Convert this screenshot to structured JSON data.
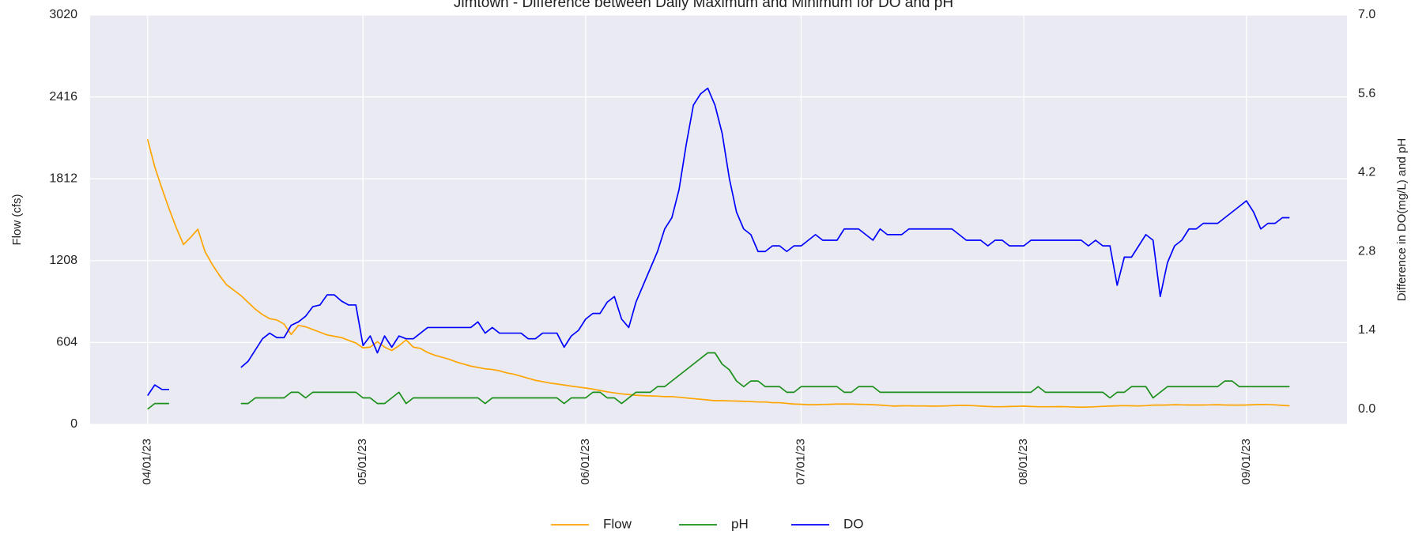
{
  "chart_data": {
    "type": "line",
    "title": "Jimtown - Difference between Daily Maximum and Minimum for DO and pH",
    "ylabel": "Flow (cfs)",
    "y2label": "Difference in DO(mg/L) and pH",
    "x": [
      "04/01/23",
      "04/02/23",
      "04/03/23",
      "04/04/23",
      "04/05/23",
      "04/06/23",
      "04/07/23",
      "04/08/23",
      "04/09/23",
      "04/10/23",
      "04/11/23",
      "04/12/23",
      "04/13/23",
      "04/14/23",
      "04/15/23",
      "04/16/23",
      "04/17/23",
      "04/18/23",
      "04/19/23",
      "04/20/23",
      "04/21/23",
      "04/22/23",
      "04/23/23",
      "04/24/23",
      "04/25/23",
      "04/26/23",
      "04/27/23",
      "04/28/23",
      "04/29/23",
      "04/30/23",
      "05/01/23",
      "05/02/23",
      "05/03/23",
      "05/04/23",
      "05/05/23",
      "05/06/23",
      "05/07/23",
      "05/08/23",
      "05/09/23",
      "05/10/23",
      "05/11/23",
      "05/12/23",
      "05/13/23",
      "05/14/23",
      "05/15/23",
      "05/16/23",
      "05/17/23",
      "05/18/23",
      "05/19/23",
      "05/20/23",
      "05/21/23",
      "05/22/23",
      "05/23/23",
      "05/24/23",
      "05/25/23",
      "05/26/23",
      "05/27/23",
      "05/28/23",
      "05/29/23",
      "05/30/23",
      "05/31/23",
      "06/01/23",
      "06/02/23",
      "06/03/23",
      "06/04/23",
      "06/05/23",
      "06/06/23",
      "06/07/23",
      "06/08/23",
      "06/09/23",
      "06/10/23",
      "06/11/23",
      "06/12/23",
      "06/13/23",
      "06/14/23",
      "06/15/23",
      "06/16/23",
      "06/17/23",
      "06/18/23",
      "06/19/23",
      "06/20/23",
      "06/21/23",
      "06/22/23",
      "06/23/23",
      "06/24/23",
      "06/25/23",
      "06/26/23",
      "06/27/23",
      "06/28/23",
      "06/29/23",
      "06/30/23",
      "07/01/23",
      "07/02/23",
      "07/03/23",
      "07/04/23",
      "07/05/23",
      "07/06/23",
      "07/07/23",
      "07/08/23",
      "07/09/23",
      "07/10/23",
      "07/11/23",
      "07/12/23",
      "07/13/23",
      "07/14/23",
      "07/15/23",
      "07/16/23",
      "07/17/23",
      "07/18/23",
      "07/19/23",
      "07/20/23",
      "07/21/23",
      "07/22/23",
      "07/23/23",
      "07/24/23",
      "07/25/23",
      "07/26/23",
      "07/27/23",
      "07/28/23",
      "07/29/23",
      "07/30/23",
      "07/31/23",
      "08/01/23",
      "08/02/23",
      "08/03/23",
      "08/04/23",
      "08/05/23",
      "08/06/23",
      "08/07/23",
      "08/08/23",
      "08/09/23",
      "08/10/23",
      "08/11/23",
      "08/12/23",
      "08/13/23",
      "08/14/23",
      "08/15/23",
      "08/16/23",
      "08/17/23",
      "08/18/23",
      "08/19/23",
      "08/20/23",
      "08/21/23",
      "08/22/23",
      "08/23/23",
      "08/24/23",
      "08/25/23",
      "08/26/23",
      "08/27/23",
      "08/28/23",
      "08/29/23",
      "08/30/23",
      "08/31/23",
      "09/01/23",
      "09/02/23",
      "09/03/23",
      "09/04/23",
      "09/05/23",
      "09/06/23",
      "09/07/23"
    ],
    "series": [
      {
        "name": "Flow",
        "color": "#ffa500",
        "axis": "y",
        "values": [
          2103,
          1900,
          1740,
          1590,
          1450,
          1327,
          1380,
          1440,
          1274,
          1180,
          1100,
          1030,
          990,
          950,
          900,
          850,
          810,
          780,
          770,
          740,
          663,
          730,
          720,
          700,
          680,
          660,
          650,
          640,
          620,
          600,
          564,
          570,
          610,
          570,
          545,
          580,
          623,
          570,
          560,
          530,
          510,
          495,
          480,
          460,
          445,
          430,
          420,
          410,
          405,
          395,
          380,
          370,
          355,
          340,
          325,
          315,
          305,
          298,
          290,
          282,
          275,
          268,
          260,
          250,
          240,
          232,
          225,
          220,
          215,
          212,
          210,
          208,
          205,
          205,
          200,
          195,
          190,
          185,
          180,
          175,
          175,
          173,
          172,
          170,
          168,
          165,
          165,
          160,
          160,
          155,
          150,
          148,
          145,
          145,
          147,
          148,
          150,
          150,
          150,
          148,
          147,
          145,
          142,
          138,
          135,
          137,
          137,
          136,
          136,
          135,
          135,
          136,
          138,
          140,
          140,
          138,
          135,
          132,
          130,
          130,
          132,
          133,
          135,
          132,
          130,
          130,
          130,
          131,
          130,
          128,
          127,
          128,
          130,
          133,
          135,
          137,
          138,
          137,
          136,
          138,
          142,
          142,
          143,
          145,
          144,
          143,
          143,
          143,
          144,
          145,
          143,
          142,
          142,
          143,
          145,
          147,
          146,
          144,
          140,
          137
        ]
      },
      {
        "name": "pH",
        "color": "#1a8f1a",
        "axis": "y2",
        "values": [
          0.0,
          0.1,
          0.1,
          0.1,
          null,
          null,
          null,
          null,
          null,
          null,
          null,
          null,
          null,
          0.1,
          0.1,
          0.2,
          0.2,
          0.2,
          0.2,
          0.2,
          0.3,
          0.3,
          0.2,
          0.3,
          0.3,
          0.3,
          0.3,
          0.3,
          0.3,
          0.3,
          0.2,
          0.2,
          0.1,
          0.1,
          0.2,
          0.3,
          0.1,
          0.2,
          0.2,
          0.2,
          0.2,
          0.2,
          0.2,
          0.2,
          0.2,
          0.2,
          0.2,
          0.1,
          0.2,
          0.2,
          0.2,
          0.2,
          0.2,
          0.2,
          0.2,
          0.2,
          0.2,
          0.2,
          0.1,
          0.2,
          0.2,
          0.2,
          0.3,
          0.3,
          0.2,
          0.2,
          0.1,
          0.2,
          0.3,
          0.3,
          0.3,
          0.4,
          0.4,
          0.5,
          0.6,
          0.7,
          0.8,
          0.9,
          1.0,
          1.0,
          0.8,
          0.7,
          0.5,
          0.4,
          0.5,
          0.5,
          0.4,
          0.4,
          0.4,
          0.3,
          0.3,
          0.4,
          0.4,
          0.4,
          0.4,
          0.4,
          0.4,
          0.3,
          0.3,
          0.4,
          0.4,
          0.4,
          0.3,
          0.3,
          0.3,
          0.3,
          0.3,
          0.3,
          0.3,
          0.3,
          0.3,
          0.3,
          0.3,
          0.3,
          0.3,
          0.3,
          0.3,
          0.3,
          0.3,
          0.3,
          0.3,
          0.3,
          0.3,
          0.3,
          0.4,
          0.3,
          0.3,
          0.3,
          0.3,
          0.3,
          0.3,
          0.3,
          0.3,
          0.3,
          0.2,
          0.3,
          0.3,
          0.4,
          0.4,
          0.4,
          0.2,
          0.3,
          0.4,
          0.4,
          0.4,
          0.4,
          0.4,
          0.4,
          0.4,
          0.4,
          0.5,
          0.5,
          0.4,
          0.4,
          0.4,
          0.4,
          0.4,
          0.4,
          0.4,
          0.4
        ]
      },
      {
        "name": "DO",
        "color": "#0000ff",
        "axis": "y2",
        "values": [
          0.24,
          0.43,
          0.35,
          0.35,
          null,
          null,
          null,
          null,
          null,
          null,
          null,
          null,
          null,
          0.74,
          0.85,
          1.05,
          1.25,
          1.35,
          1.27,
          1.27,
          1.49,
          1.55,
          1.65,
          1.82,
          1.85,
          2.03,
          2.03,
          1.92,
          1.85,
          1.85,
          1.13,
          1.3,
          1.0,
          1.3,
          1.1,
          1.3,
          1.25,
          1.25,
          1.35,
          1.45,
          1.45,
          1.45,
          1.45,
          1.45,
          1.45,
          1.45,
          1.55,
          1.35,
          1.45,
          1.35,
          1.35,
          1.35,
          1.35,
          1.25,
          1.25,
          1.35,
          1.35,
          1.35,
          1.1,
          1.3,
          1.4,
          1.6,
          1.7,
          1.7,
          1.9,
          2.0,
          1.6,
          1.45,
          1.9,
          2.2,
          2.5,
          2.8,
          3.2,
          3.4,
          3.9,
          4.7,
          5.4,
          5.6,
          5.7,
          5.4,
          4.9,
          4.1,
          3.5,
          3.2,
          3.1,
          2.8,
          2.8,
          2.9,
          2.9,
          2.8,
          2.9,
          2.9,
          3.0,
          3.1,
          3.0,
          3.0,
          3.0,
          3.2,
          3.2,
          3.2,
          3.1,
          3.0,
          3.2,
          3.1,
          3.1,
          3.1,
          3.2,
          3.2,
          3.2,
          3.2,
          3.2,
          3.2,
          3.2,
          3.1,
          3.0,
          3.0,
          3.0,
          2.9,
          3.0,
          3.0,
          2.9,
          2.9,
          2.9,
          3.0,
          3.0,
          3.0,
          3.0,
          3.0,
          3.0,
          3.0,
          3.0,
          2.9,
          3.0,
          2.9,
          2.9,
          2.2,
          2.7,
          2.7,
          2.9,
          3.1,
          3.0,
          2.0,
          2.6,
          2.9,
          3.0,
          3.2,
          3.2,
          3.3,
          3.3,
          3.3,
          3.4,
          3.5,
          3.6,
          3.7,
          3.5,
          3.2,
          3.3,
          3.3,
          3.4,
          3.4
        ]
      }
    ],
    "xlim": [
      "03/24/23",
      "09/15/23"
    ],
    "xticks": [
      "04/01/23",
      "05/01/23",
      "06/01/23",
      "07/01/23",
      "08/01/23",
      "09/01/23"
    ],
    "ylim": [
      0,
      3020
    ],
    "yticks": [
      0,
      604,
      1208,
      1812,
      2416,
      3020
    ],
    "y2lim": [
      -0.27,
      7.0
    ],
    "y2ticks": [
      {
        "value": 0,
        "label": "0.0"
      },
      1.4,
      2.8,
      4.2,
      5.6,
      {
        "value": 7,
        "label": "7.0"
      }
    ],
    "grid": true,
    "legend": "bottom"
  }
}
